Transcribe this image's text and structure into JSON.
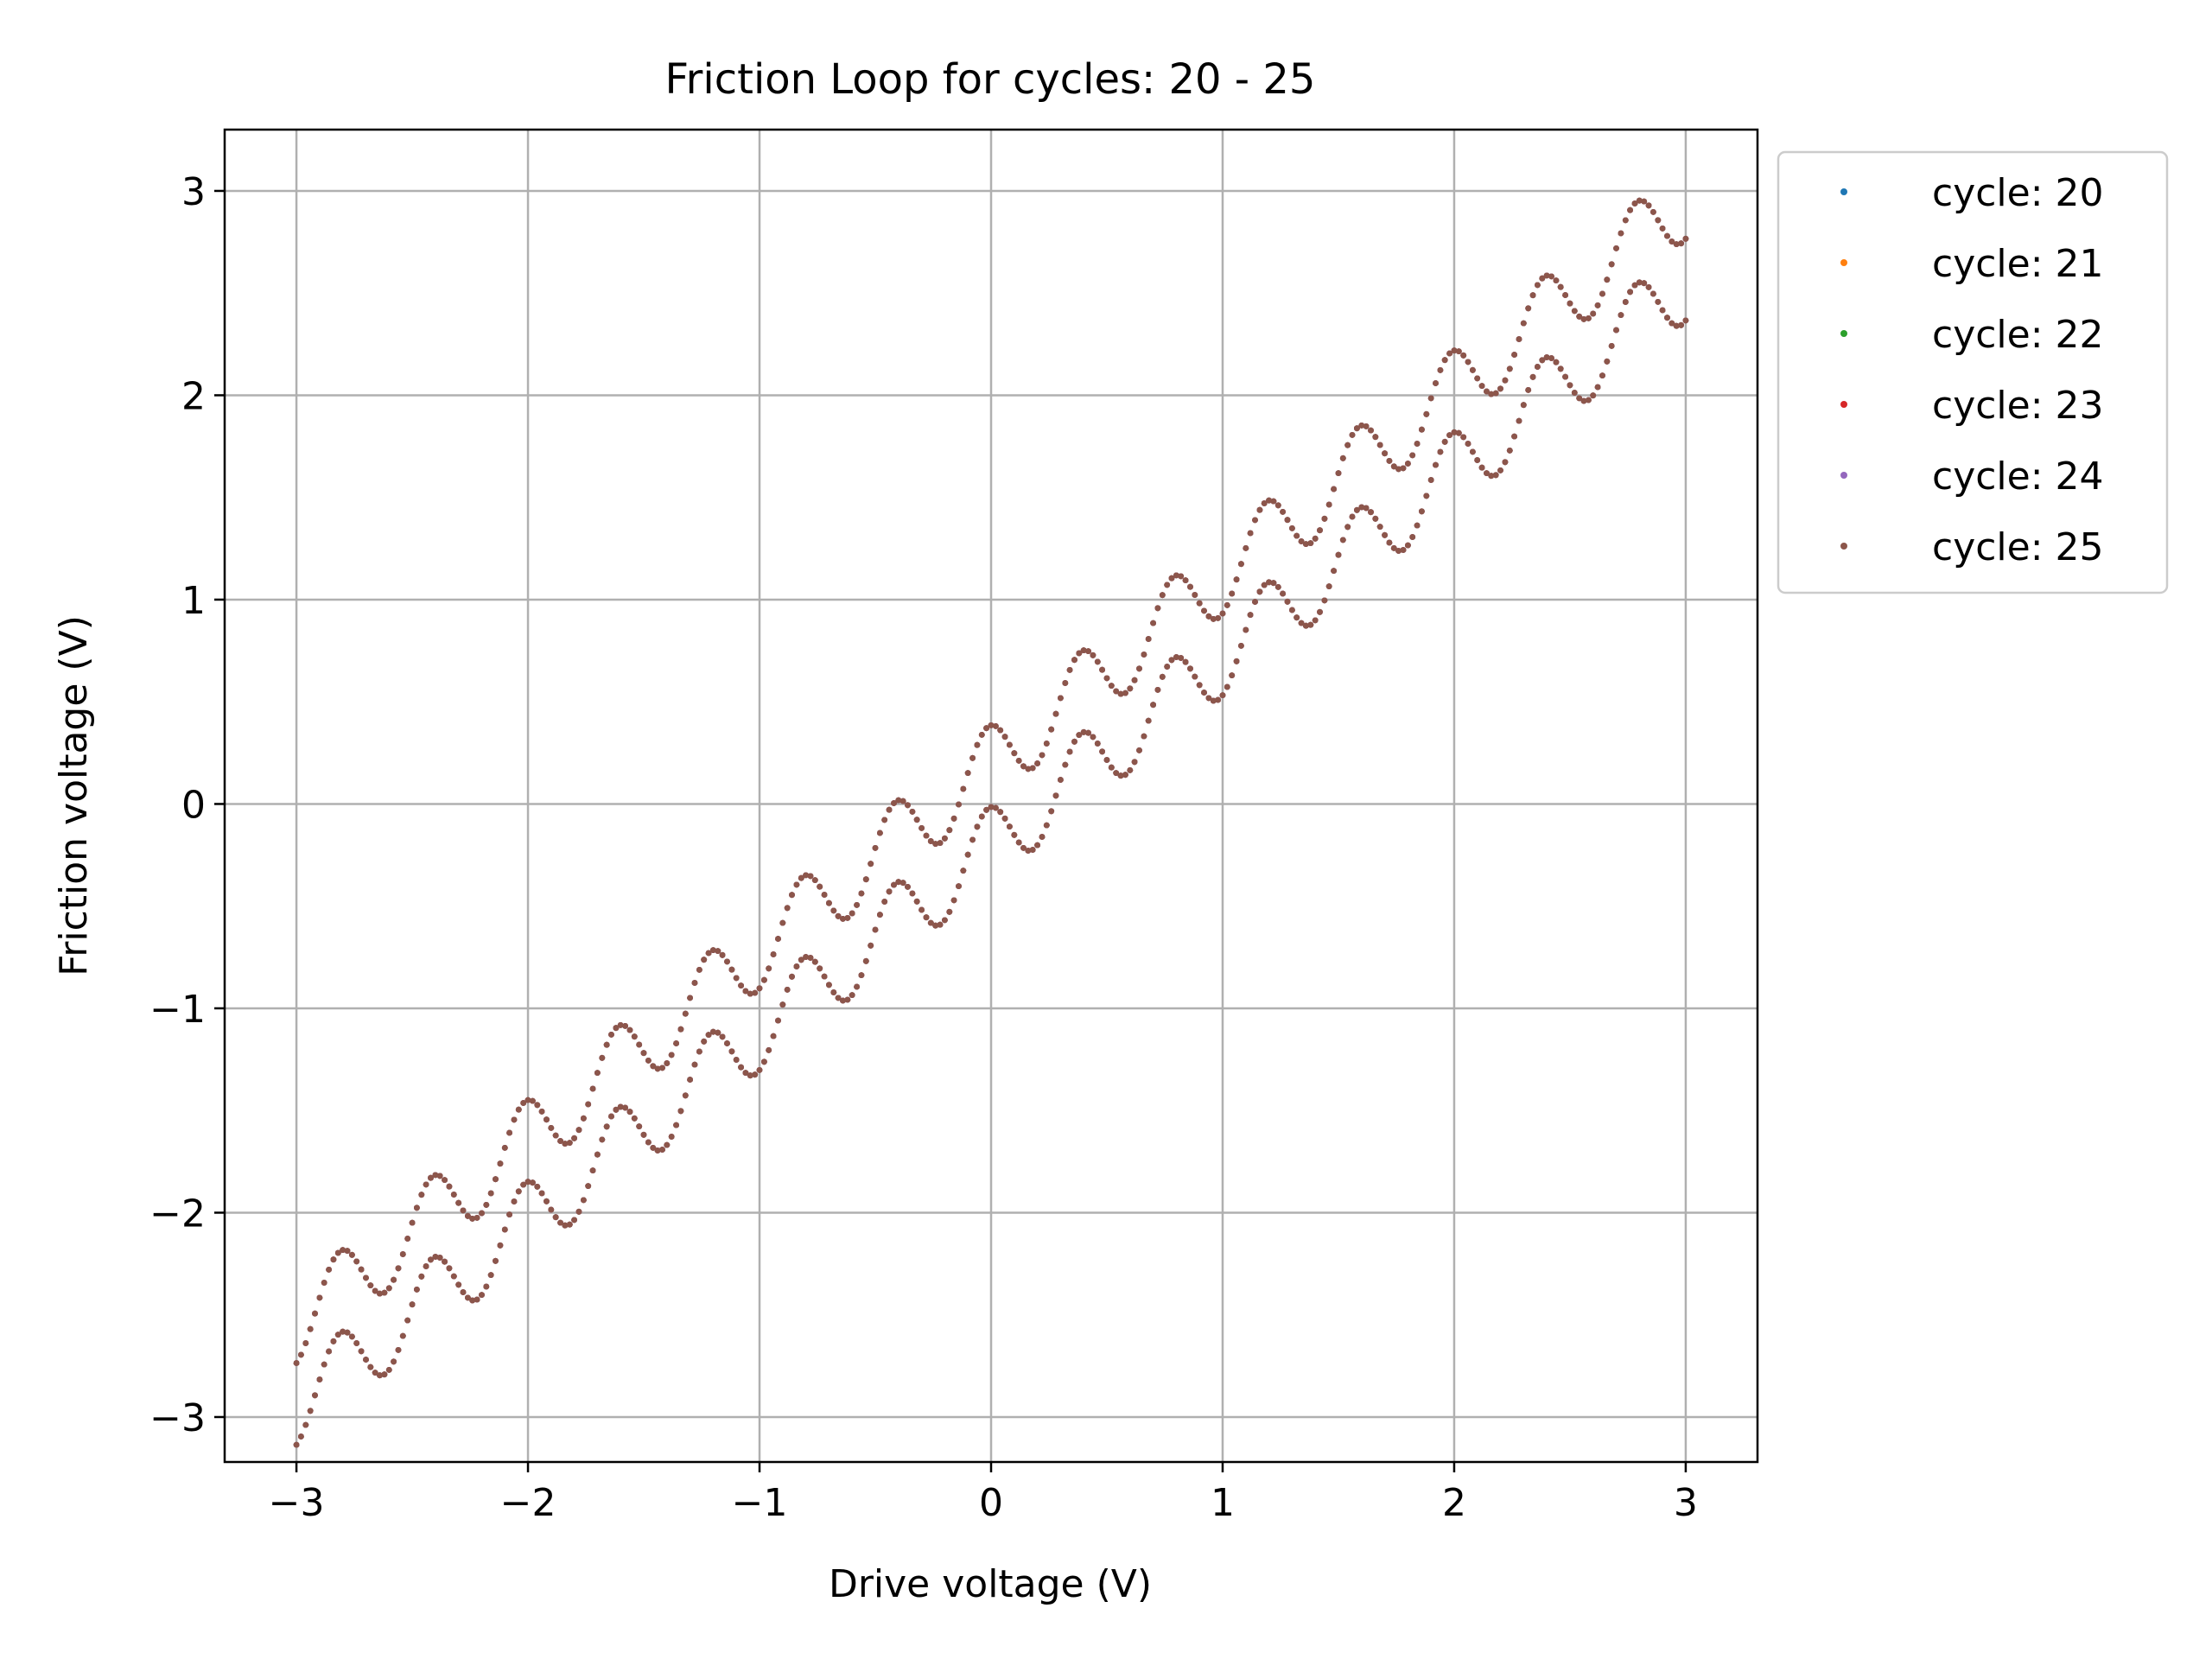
{
  "chart_data": {
    "type": "scatter",
    "title": "Friction Loop for cycles: 20 - 25",
    "xlabel": "Drive voltage (V)",
    "ylabel": "Friction voltage (V)",
    "xlim": [
      -3.31,
      3.31
    ],
    "ylim": [
      -3.22,
      3.3
    ],
    "xticks": [
      -3,
      -2,
      -1,
      0,
      1,
      2,
      3
    ],
    "xtick_labels": [
      "−3",
      "−2",
      "−1",
      "0",
      "1",
      "2",
      "3"
    ],
    "yticks": [
      -3,
      -2,
      -1,
      0,
      1,
      2,
      3
    ],
    "ytick_labels": [
      "−3",
      "−2",
      "−1",
      "0",
      "1",
      "2",
      "3"
    ],
    "grid": true,
    "legend_position": "outside-upper-right",
    "drive": {
      "min": -3,
      "max": 3,
      "points_per_sweep": 301
    },
    "trace_model": {
      "forward": {
        "slope": 0.917,
        "offset": -0.2,
        "wiggle_amplitude": 0.19,
        "wiggle_period": 0.4,
        "wiggle_phase": 1.8
      },
      "backward": {
        "slope": 0.917,
        "offset": 0.2,
        "wiggle_amplitude": 0.19,
        "wiggle_period": 0.4,
        "wiggle_phase": 1.8
      }
    },
    "series": [
      {
        "name": "cycle: 20",
        "color": "#1f77b4"
      },
      {
        "name": "cycle: 21",
        "color": "#ff7f0e"
      },
      {
        "name": "cycle: 22",
        "color": "#2ca02c"
      },
      {
        "name": "cycle: 23",
        "color": "#d62728"
      },
      {
        "name": "cycle: 24",
        "color": "#9467bd"
      },
      {
        "name": "cycle: 25",
        "color": "#8c564b"
      }
    ]
  }
}
